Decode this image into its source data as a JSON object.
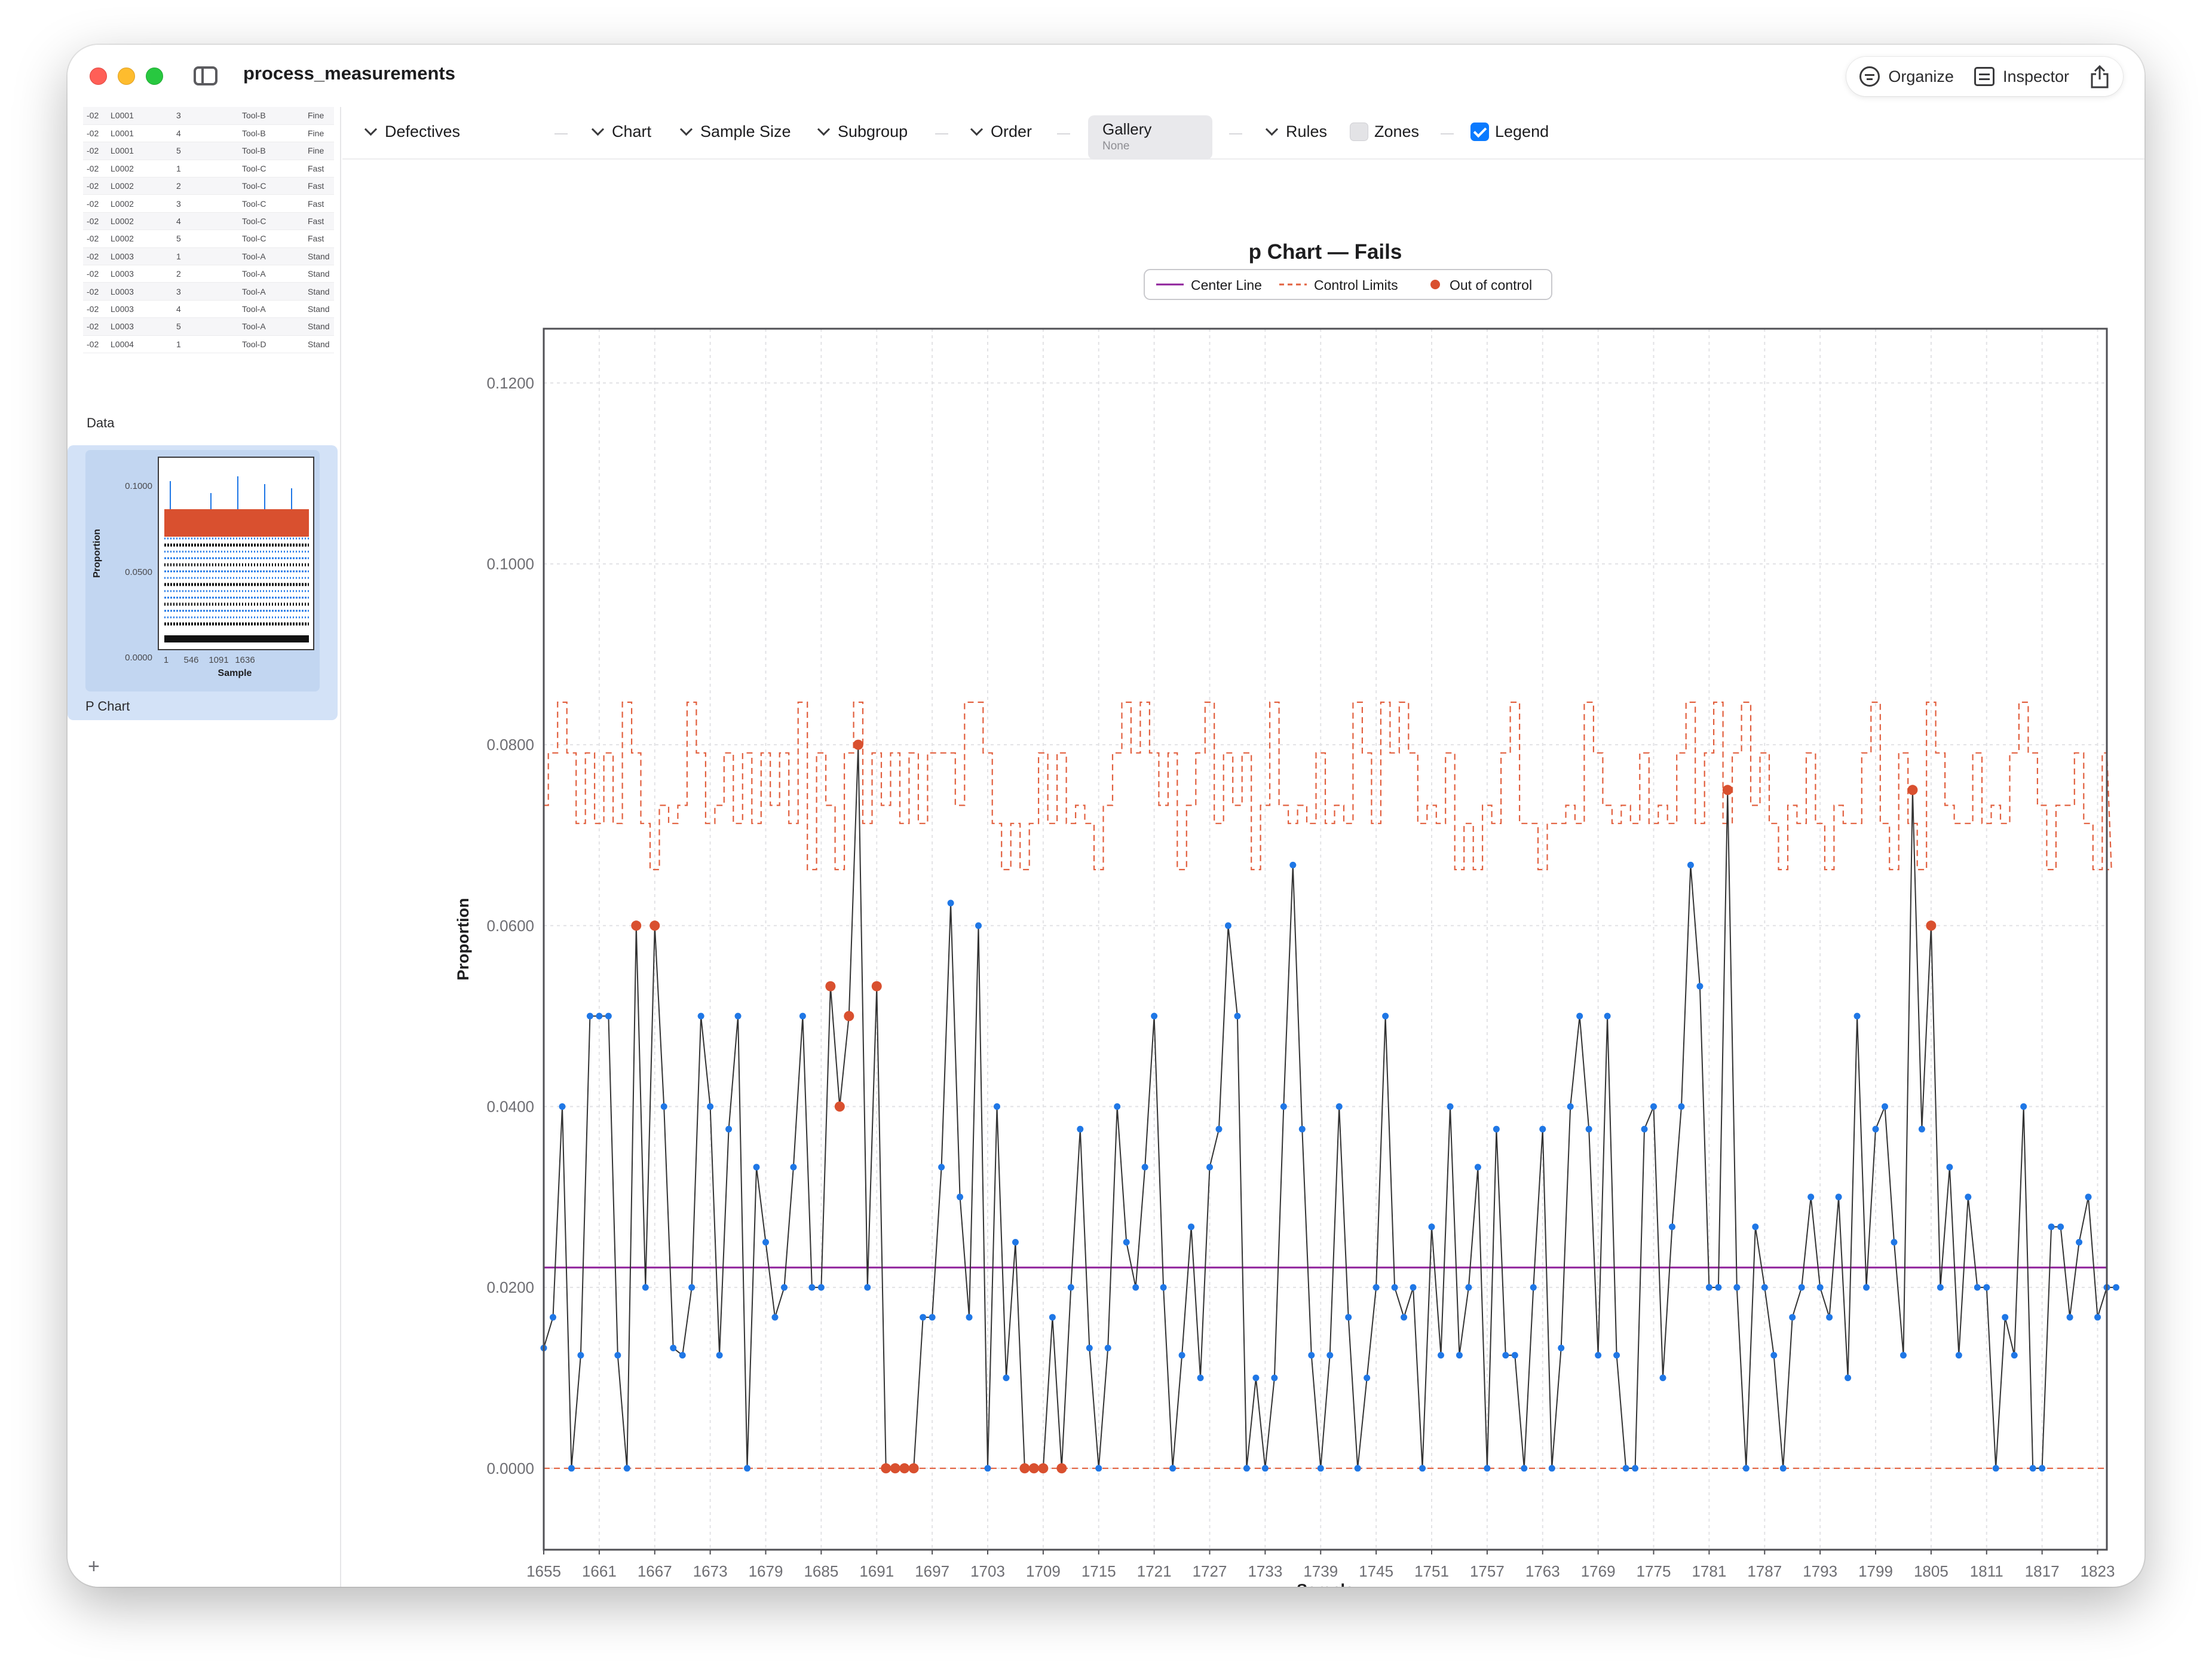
{
  "window": {
    "title": "process_measurements"
  },
  "toolbar_right": {
    "organize_label": "Organize",
    "inspector_label": "Inspector"
  },
  "sidebar": {
    "data_rows": [
      [
        "-02",
        "L0001",
        "3",
        "Tool-B",
        "Fine"
      ],
      [
        "-02",
        "L0001",
        "4",
        "Tool-B",
        "Fine"
      ],
      [
        "-02",
        "L0001",
        "5",
        "Tool-B",
        "Fine"
      ],
      [
        "-02",
        "L0002",
        "1",
        "Tool-C",
        "Fast"
      ],
      [
        "-02",
        "L0002",
        "2",
        "Tool-C",
        "Fast"
      ],
      [
        "-02",
        "L0002",
        "3",
        "Tool-C",
        "Fast"
      ],
      [
        "-02",
        "L0002",
        "4",
        "Tool-C",
        "Fast"
      ],
      [
        "-02",
        "L0002",
        "5",
        "Tool-C",
        "Fast"
      ],
      [
        "-02",
        "L0003",
        "1",
        "Tool-A",
        "Stand"
      ],
      [
        "-02",
        "L0003",
        "2",
        "Tool-A",
        "Stand"
      ],
      [
        "-02",
        "L0003",
        "3",
        "Tool-A",
        "Stand"
      ],
      [
        "-02",
        "L0003",
        "4",
        "Tool-A",
        "Stand"
      ],
      [
        "-02",
        "L0003",
        "5",
        "Tool-A",
        "Stand"
      ],
      [
        "-02",
        "L0004",
        "1",
        "Tool-D",
        "Stand"
      ]
    ],
    "data_label": "Data",
    "pchart_label": "P Chart",
    "pchart_thumb": {
      "yticks": [
        "0.1000",
        "0.0500",
        "0.0000"
      ],
      "xticks": [
        "1",
        "546",
        "1091",
        "1636"
      ],
      "ylabel": "Proportion",
      "xlabel": "Sample"
    },
    "add_label": "+"
  },
  "toolbar": {
    "defectives": "Defectives",
    "chart": "Chart",
    "sample_size": "Sample Size",
    "subgroup": "Subgroup",
    "order": "Order",
    "gallery_title": "Gallery",
    "gallery_value": "None",
    "rules": "Rules",
    "zones": "Zones",
    "zones_checked": false,
    "legend": "Legend",
    "legend_checked": true
  },
  "colors": {
    "accent": "#0a7aff",
    "center_line": "#8e1f9a",
    "control_limits": "#e2603f",
    "out_of_control": "#d9502f",
    "points": "#1f77e6",
    "line": "#333333"
  },
  "chart_data": {
    "type": "line",
    "title": "p Chart — Fails",
    "xlabel": "Sample",
    "ylabel": "Proportion",
    "legend": [
      "Center Line",
      "Control Limits",
      "Out of control"
    ],
    "legend_position": "top-center",
    "grid": true,
    "xlim": [
      1655,
      1824
    ],
    "ylim": [
      -0.009,
      0.126
    ],
    "yticks": [
      "0.1200",
      "0.1000",
      "0.0800",
      "0.0600",
      "0.0400",
      "0.0200",
      "0.0000"
    ],
    "xticks": [
      "1655",
      "1661",
      "1667",
      "1673",
      "1679",
      "1685",
      "1691",
      "1697",
      "1703",
      "1709",
      "1715",
      "1721",
      "1727",
      "1733",
      "1739",
      "1745",
      "1751",
      "1757",
      "1763",
      "1769",
      "1775",
      "1781",
      "1787",
      "1793",
      "1799",
      "1805",
      "1811",
      "1817",
      "1823"
    ],
    "center_line": 0.0222,
    "lower_control_limit": 0.0,
    "x_start": 1655,
    "values": [
      0.0133,
      0.0167,
      0.04,
      0.0,
      0.0125,
      0.05,
      0.05,
      0.05,
      0.0125,
      0.0,
      0.06,
      0.02,
      0.06,
      0.04,
      0.0133,
      0.0125,
      0.02,
      0.05,
      0.04,
      0.0125,
      0.0375,
      0.05,
      0.0,
      0.0333,
      0.025,
      0.0167,
      0.02,
      0.0333,
      0.05,
      0.02,
      0.02,
      0.0533,
      0.04,
      0.05,
      0.08,
      0.02,
      0.0533,
      0.0,
      0.0,
      0.0,
      0.0,
      0.0167,
      0.0167,
      0.0333,
      0.0625,
      0.03,
      0.0167,
      0.06,
      0.0,
      0.04,
      0.01,
      0.025,
      0.0,
      0.0,
      0.0,
      0.0167,
      0.0,
      0.02,
      0.0375,
      0.0133,
      0.0,
      0.0133,
      0.04,
      0.025,
      0.02,
      0.0333,
      0.05,
      0.02,
      0.0,
      0.0125,
      0.0267,
      0.01,
      0.0333,
      0.0375,
      0.06,
      0.05,
      0.0,
      0.01,
      0.0,
      0.01,
      0.04,
      0.0667,
      0.0375,
      0.0125,
      0.0,
      0.0125,
      0.04,
      0.0167,
      0.0,
      0.01,
      0.02,
      0.05,
      0.02,
      0.0167,
      0.02,
      0.0,
      0.0267,
      0.0125,
      0.04,
      0.0125,
      0.02,
      0.0333,
      0.0,
      0.0375,
      0.0125,
      0.0125,
      0.0,
      0.02,
      0.0375,
      0.0,
      0.0133,
      0.04,
      0.05,
      0.0375,
      0.0125,
      0.05,
      0.0125,
      0.0,
      0.0,
      0.0375,
      0.04,
      0.01,
      0.0267,
      0.04,
      0.0667,
      0.0533,
      0.02,
      0.02,
      0.075,
      0.02,
      0.0,
      0.0267,
      0.02,
      0.0125,
      0.0,
      0.0167,
      0.02,
      0.03,
      0.02,
      0.0167,
      0.03,
      0.01,
      0.05,
      0.02,
      0.0375,
      0.04,
      0.025,
      0.0125,
      0.075,
      0.0375,
      0.06,
      0.02,
      0.0333,
      0.0125,
      0.03,
      0.02,
      0.02,
      0.0,
      0.0167,
      0.0125,
      0.04,
      0.0,
      0.0,
      0.0267,
      0.0267,
      0.0167,
      0.025,
      0.03,
      0.0167,
      0.02,
      0.02
    ],
    "out_of_control_indices": [
      10,
      12,
      31,
      32,
      33,
      34,
      36,
      37,
      38,
      39,
      40,
      52,
      53,
      54,
      56,
      128,
      148,
      150
    ],
    "ucl_levels": [
      0.0733,
      0.0791,
      0.0847,
      0.0791,
      0.0713,
      0.0791,
      0.0713,
      0.0791,
      0.0713,
      0.0847,
      0.0791,
      0.0713,
      0.0662,
      0.0733,
      0.0713,
      0.0733,
      0.0847,
      0.0791,
      0.0713,
      0.0733,
      0.0791,
      0.0713,
      0.0791,
      0.0713,
      0.0791,
      0.0733,
      0.0791,
      0.0713,
      0.0847,
      0.0662,
      0.0791,
      0.0733,
      0.0662,
      0.0791,
      0.0847,
      0.0713,
      0.0791,
      0.0733,
      0.0791,
      0.0713,
      0.0791,
      0.0713,
      0.0791,
      0.0791,
      0.0791,
      0.0733,
      0.0847,
      0.0847,
      0.0791,
      0.0713,
      0.0662,
      0.0713,
      0.0662,
      0.0713,
      0.0791,
      0.0713,
      0.0791,
      0.0713,
      0.0733,
      0.0713,
      0.0662,
      0.0733,
      0.0791,
      0.0847,
      0.0791,
      0.0847,
      0.0791,
      0.0733,
      0.0791,
      0.0662,
      0.0733,
      0.0791,
      0.0847,
      0.0713,
      0.0791,
      0.0733,
      0.0791,
      0.0662,
      0.0733,
      0.0847,
      0.0733,
      0.0713,
      0.0733,
      0.0713,
      0.0791,
      0.0713,
      0.0733,
      0.0713,
      0.0847,
      0.0791,
      0.0713,
      0.0847,
      0.0791,
      0.0847,
      0.0791,
      0.0713,
      0.0733,
      0.0713,
      0.0791,
      0.0662,
      0.0713,
      0.0662,
      0.0733,
      0.0713,
      0.0791,
      0.0847,
      0.0713,
      0.0713,
      0.0662,
      0.0713,
      0.0713,
      0.0733,
      0.0713,
      0.0847,
      0.0791,
      0.0733,
      0.0713,
      0.0733,
      0.0713,
      0.0791,
      0.0713,
      0.0733,
      0.0713,
      0.0791,
      0.0847,
      0.0713,
      0.0791,
      0.0847,
      0.0713,
      0.0791,
      0.0847,
      0.0733,
      0.0791,
      0.0713,
      0.0662,
      0.0733,
      0.0713,
      0.0791,
      0.0713,
      0.0662,
      0.0733,
      0.0713,
      0.0713,
      0.0791,
      0.0847,
      0.0713,
      0.0662,
      0.0791,
      0.0713,
      0.0662,
      0.0847,
      0.0791,
      0.0733,
      0.0713,
      0.0713,
      0.0791,
      0.0713,
      0.0733,
      0.0713,
      0.0791,
      0.0847,
      0.0791,
      0.0733,
      0.0662,
      0.0733,
      0.0733,
      0.0791,
      0.0713,
      0.0662,
      0.0791,
      0.0662,
      0.0847
    ]
  }
}
